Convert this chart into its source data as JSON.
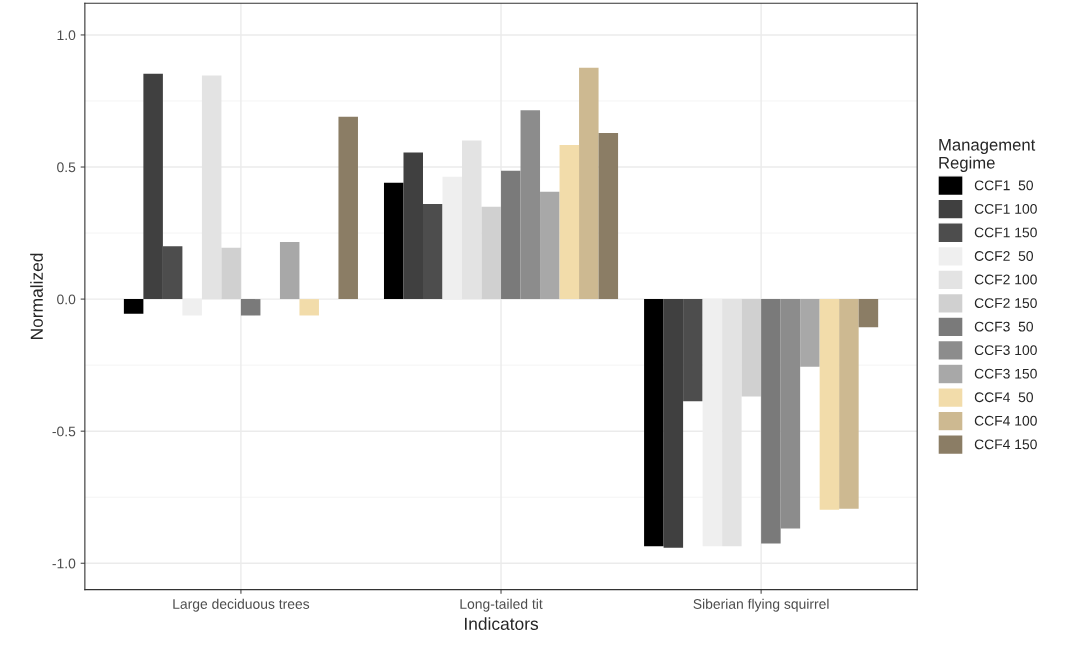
{
  "chart_data": {
    "type": "bar",
    "xlabel": "Indicators",
    "ylabel": "Normalized",
    "legend_title": "Management\nRegime",
    "categories": [
      "Large deciduous trees",
      "Long-tailed tit",
      "Siberian flying squirrel"
    ],
    "series": [
      {
        "name": "CCF1  50",
        "color": "#000000",
        "values": [
          -0.055,
          0.44,
          -0.936
        ]
      },
      {
        "name": "CCF1 100",
        "color": "#404040",
        "values": [
          0.853,
          0.555,
          -0.941
        ]
      },
      {
        "name": "CCF1 150",
        "color": "#4d4d4d",
        "values": [
          0.2,
          0.36,
          -0.387
        ]
      },
      {
        "name": "CCF2  50",
        "color": "#efefef",
        "values": [
          -0.062,
          0.463,
          -0.936
        ]
      },
      {
        "name": "CCF2 100",
        "color": "#e3e3e3",
        "values": [
          0.846,
          0.6,
          -0.936
        ]
      },
      {
        "name": "CCF2 150",
        "color": "#d0d0d0",
        "values": [
          0.194,
          0.35,
          -0.369
        ]
      },
      {
        "name": "CCF3  50",
        "color": "#7a7a7a",
        "values": [
          -0.062,
          0.486,
          -0.925
        ]
      },
      {
        "name": "CCF3 100",
        "color": "#8c8c8c",
        "values": [
          0,
          0.715,
          -0.868
        ]
      },
      {
        "name": "CCF3 150",
        "color": "#a8a8a8",
        "values": [
          0.216,
          0.406,
          -0.256
        ]
      },
      {
        "name": "CCF4  50",
        "color": "#f2dcaa",
        "values": [
          -0.062,
          0.583,
          -0.797
        ]
      },
      {
        "name": "CCF4 100",
        "color": "#cdb991",
        "values": [
          0,
          0.876,
          -0.794
        ]
      },
      {
        "name": "CCF4 150",
        "color": "#8b7d65",
        "values": [
          0.69,
          0.629,
          -0.107
        ]
      }
    ],
    "ylim": [
      -1.1,
      1.12
    ],
    "yticks": [
      {
        "value": -1.0,
        "label": "-1.0"
      },
      {
        "value": -0.5,
        "label": "-0.5"
      },
      {
        "value": 0.0,
        "label": "0.0"
      },
      {
        "value": 0.5,
        "label": "0.5"
      },
      {
        "value": 1.0,
        "label": "1.0"
      }
    ],
    "grid": true,
    "legend": "right"
  }
}
